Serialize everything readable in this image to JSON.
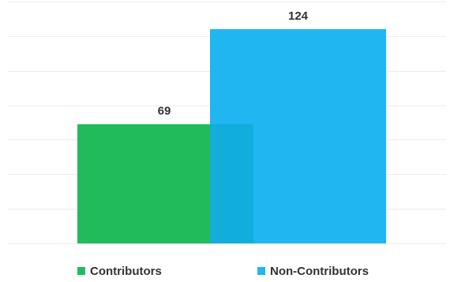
{
  "chart_data": {
    "type": "bar",
    "categories": [
      "Contributors",
      "Non-Contributors"
    ],
    "values": [
      69,
      124
    ],
    "data_labels": [
      "69",
      "124"
    ],
    "ylim": [
      0,
      140
    ],
    "grid": true,
    "legend": "bottom",
    "series": [
      {
        "name": "Contributors",
        "value": 69,
        "label": "69",
        "color": "#22bb5c"
      },
      {
        "name": "Non-Contributors",
        "value": 124,
        "label": "124",
        "color": "#1fb6f2"
      }
    ],
    "colors": {
      "gridline": "#ececec",
      "overlap": "#11aedb",
      "text": "#333333"
    }
  }
}
